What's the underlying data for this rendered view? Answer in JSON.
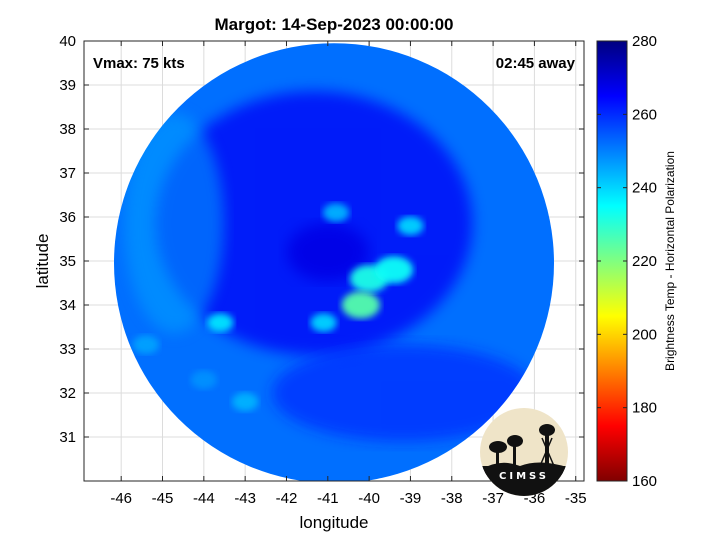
{
  "chart_data": {
    "type": "heatmap",
    "title": "Margot: 14-Sep-2023 00:00:00",
    "xlabel": "longitude",
    "ylabel": "latitude",
    "xlim": [
      -46.9,
      -34.8
    ],
    "ylim": [
      30.0,
      40.0
    ],
    "x_ticks": [
      -46,
      -45,
      -44,
      -43,
      -42,
      -41,
      -40,
      -39,
      -38,
      -37,
      -36,
      -35
    ],
    "y_ticks": [
      31,
      32,
      33,
      34,
      35,
      36,
      37,
      38,
      39,
      40
    ],
    "grid": true,
    "annotations": {
      "vmax": "Vmax: 75 kts",
      "time_away": "02:45 away"
    },
    "colorbar": {
      "label": "Brightness Temp - Horizontal Polarization",
      "range": [
        160,
        280
      ],
      "ticks": [
        160,
        180,
        200,
        220,
        240,
        260,
        280
      ],
      "colormap": [
        "#800000",
        "#ff0000",
        "#ff8000",
        "#ffff00",
        "#80ff80",
        "#00ffff",
        "#0080ff",
        "#0000ff",
        "#000080"
      ]
    },
    "swath": {
      "center_lon": -40.85,
      "center_lat": 34.95,
      "radius_deg_lat": 5.0
    },
    "features": [
      {
        "name": "eye",
        "lon": -41.0,
        "lat": 35.2,
        "tb": 268
      },
      {
        "name": "inner-core-convection",
        "lon": -40.0,
        "lat": 34.6,
        "tb": 232
      },
      {
        "name": "inner-core-convection",
        "lon": -39.4,
        "lat": 34.8,
        "tb": 234
      },
      {
        "name": "inner-core-convection",
        "lon": -40.2,
        "lat": 34.0,
        "tb": 225
      },
      {
        "name": "northern-band",
        "lon": -39.0,
        "lat": 35.8,
        "tb": 240
      },
      {
        "name": "northern-band",
        "lon": -40.8,
        "lat": 36.1,
        "tb": 244
      },
      {
        "name": "rainband",
        "lon": -43.6,
        "lat": 33.6,
        "tb": 238
      },
      {
        "name": "rainband",
        "lon": -41.1,
        "lat": 33.6,
        "tb": 240
      },
      {
        "name": "rainband",
        "lon": -45.4,
        "lat": 33.1,
        "tb": 246
      },
      {
        "name": "rainband",
        "lon": -43.0,
        "lat": 31.8,
        "tb": 244
      },
      {
        "name": "rainband",
        "lon": -44.0,
        "lat": 32.3,
        "tb": 248
      }
    ]
  },
  "logo": {
    "text": "CIMSS"
  }
}
